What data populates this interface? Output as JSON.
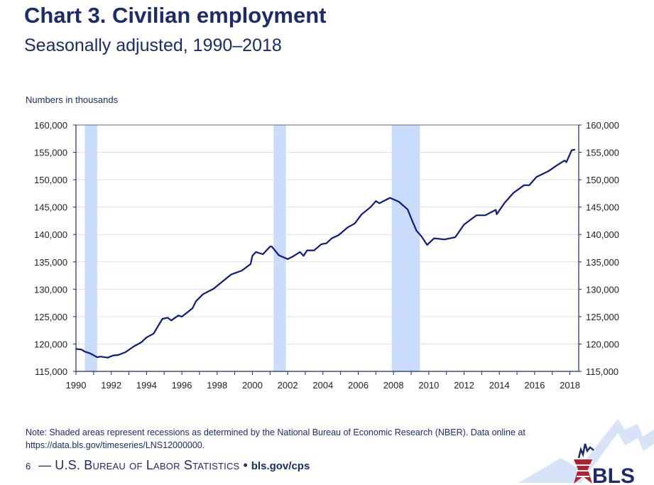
{
  "header": {
    "title": "Chart 3. Civilian employment",
    "subtitle": "Seasonally adjusted, 1990–2018"
  },
  "chart_data": {
    "type": "line",
    "title": "Chart 3. Civilian employment",
    "subtitle": "Seasonally adjusted, 1990–2018",
    "ylabel": "Numbers in thousands",
    "xlabel": "",
    "xlim": [
      1990,
      2018.5
    ],
    "ylim": [
      115000,
      160000
    ],
    "xticks": [
      "1990",
      "1992",
      "1994",
      "1996",
      "1998",
      "2000",
      "2002",
      "2004",
      "2006",
      "2008",
      "2010",
      "2012",
      "2014",
      "2016",
      "2018"
    ],
    "yticks": [
      "115,000",
      "120,000",
      "125,000",
      "130,000",
      "135,000",
      "140,000",
      "145,000",
      "150,000",
      "155,000",
      "160,000"
    ],
    "grid": true,
    "dual_y_axis": true,
    "line_color": "#0d1a80",
    "recession_color": "#c9dcfb",
    "recessions": [
      [
        1990.5,
        1991.2
      ],
      [
        2001.2,
        2001.9
      ],
      [
        2007.9,
        2009.5
      ]
    ],
    "x": [
      1990.0,
      1990.3,
      1990.5,
      1990.8,
      1991.2,
      1991.4,
      1991.8,
      1992.1,
      1992.4,
      1992.8,
      1993.3,
      1993.7,
      1994.0,
      1994.4,
      1994.9,
      1995.2,
      1995.4,
      1995.8,
      1996.0,
      1996.6,
      1996.8,
      1997.2,
      1997.8,
      1998.3,
      1998.8,
      1999.4,
      1999.9,
      2000.0,
      2000.2,
      2000.6,
      2001.0,
      2001.1,
      2001.5,
      2002.0,
      2002.3,
      2002.7,
      2002.9,
      2003.1,
      2003.5,
      2003.9,
      2004.2,
      2004.5,
      2004.9,
      2005.4,
      2005.8,
      2006.2,
      2006.7,
      2007.0,
      2007.2,
      2007.5,
      2007.8,
      2008.3,
      2008.8,
      2009.1,
      2009.3,
      2009.6,
      2009.9,
      2010.3,
      2010.9,
      2011.5,
      2012.0,
      2012.7,
      2013.2,
      2013.8,
      2013.85,
      2014.3,
      2014.8,
      2015.4,
      2015.7,
      2016.1,
      2016.8,
      2017.2,
      2017.7,
      2017.8,
      2018.1,
      2018.3
    ],
    "y": [
      119100,
      119000,
      118600,
      118300,
      117600,
      117700,
      117500,
      117900,
      118000,
      118500,
      119600,
      120300,
      121200,
      121900,
      124600,
      124800,
      124300,
      125200,
      125000,
      126500,
      127800,
      129100,
      130100,
      131400,
      132700,
      133400,
      134600,
      136100,
      136800,
      136400,
      137800,
      137800,
      136200,
      135500,
      136000,
      136800,
      136100,
      137100,
      137100,
      138200,
      138400,
      139300,
      139900,
      141300,
      142000,
      143700,
      145000,
      146100,
      145700,
      146200,
      146700,
      146000,
      144600,
      142200,
      140700,
      139600,
      138100,
      139300,
      139100,
      139500,
      141800,
      143500,
      143500,
      144500,
      143700,
      145800,
      147600,
      149000,
      149000,
      150500,
      151600,
      152500,
      153500,
      153200,
      155400,
      155500
    ]
  },
  "note": {
    "line1": "Note: Shaded areas represent recessions as determined by the National Bureau of Economic Research (NBER).  Data online at",
    "line2": "https://data.bls.gov/timeseries/LNS12000000."
  },
  "footer": {
    "page": "6",
    "dash": "—",
    "org": "U.S. Bureau of Labor Statistics",
    "bullet": "•",
    "url": "bls.gov/cps"
  },
  "logo": {
    "text": "BLS"
  }
}
